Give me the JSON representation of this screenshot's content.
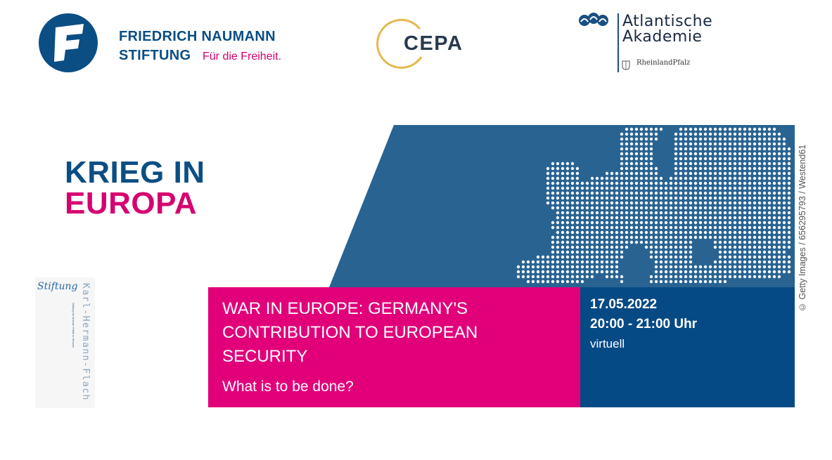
{
  "logos": {
    "fns": {
      "name": "FRIEDRICH NAUMANN",
      "stiftung": "STIFTUNG",
      "slogan": "Für die Freiheit.",
      "brand_color": "#0b4e84",
      "slogan_color": "#d6006f"
    },
    "cepa": {
      "name": "CEPA",
      "ring_color": "#e7b84f"
    },
    "atlantische_akademie": {
      "line1": "Atlantische",
      "line2": "Akademie",
      "region": "RheinlandPfalz"
    },
    "khf": {
      "stiftung": "Stiftung",
      "name": "Karl-Hermann-Flach",
      "subtitle": "Stiftung für liberale Politik in Hessen"
    }
  },
  "headline": {
    "line1": "KRIEG IN",
    "line2": "EUROPA"
  },
  "event": {
    "title": "WAR IN EUROPE: GERMANY'S CONTRIBUTION TO EUROPEAN SECURITY",
    "subtitle": "What is to be done?",
    "date": "17.05.2022",
    "time": "20:00 - 21:00 Uhr",
    "format": "virtuell"
  },
  "credit": "© Getty Images / 656295793 / Westend61",
  "colors": {
    "pink": "#e2007a",
    "navy": "#064a85",
    "map_blue": "#286392"
  }
}
